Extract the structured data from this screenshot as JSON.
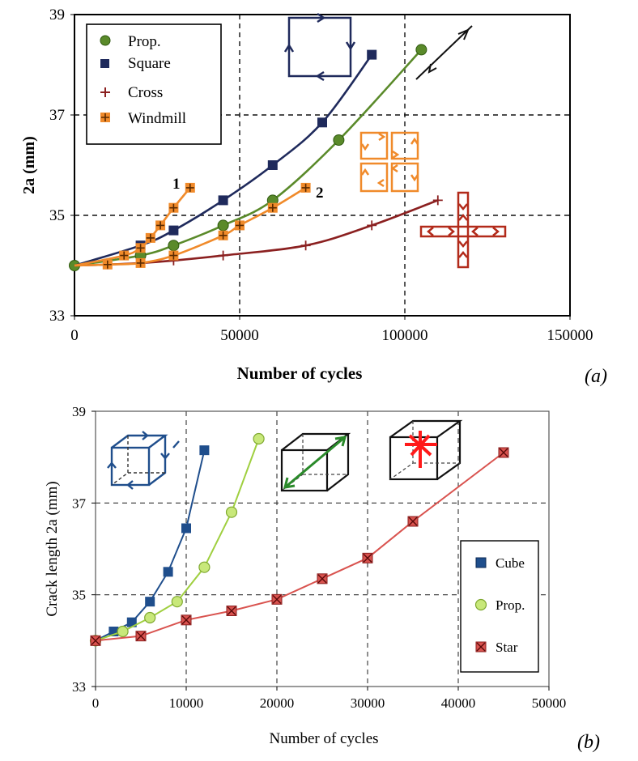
{
  "panel_labels": [
    "(a)",
    "(b)"
  ],
  "icon_labels": [
    "1",
    "2"
  ],
  "colors": {
    "navy": "#1f2a5c",
    "green": "#5a8a2a",
    "cross": "#8b2020",
    "orange": "#f08a2a",
    "blue_b": "#1f4e8c",
    "lightgreen_b": "#9fcf3f",
    "red_b": "#d9534f"
  },
  "chart_data": [
    {
      "type": "line",
      "panel": "(a)",
      "xlabel": "Number of cycles",
      "ylabel": "2a (mm)",
      "xlim": [
        0,
        150000
      ],
      "ylim": [
        33,
        39
      ],
      "xticks": [
        0,
        50000,
        100000,
        150000
      ],
      "yticks": [
        33,
        35,
        37,
        39
      ],
      "grid": "dashed",
      "legend_position": "top-left",
      "series": [
        {
          "name": "Prop.",
          "color": "#5a8a2a",
          "marker": "circle",
          "points": [
            [
              0,
              34.0
            ],
            [
              20000,
              34.2
            ],
            [
              30000,
              34.4
            ],
            [
              45000,
              34.8
            ],
            [
              60000,
              35.3
            ],
            [
              80000,
              36.5
            ],
            [
              105000,
              38.3
            ]
          ]
        },
        {
          "name": "Square",
          "color": "#1f2a5c",
          "marker": "square",
          "points": [
            [
              0,
              34.0
            ],
            [
              20000,
              34.4
            ],
            [
              30000,
              34.7
            ],
            [
              45000,
              35.3
            ],
            [
              60000,
              36.0
            ],
            [
              75000,
              36.85
            ],
            [
              90000,
              38.2
            ]
          ]
        },
        {
          "name": "Cross",
          "color": "#8b2020",
          "marker": "plus",
          "points": [
            [
              0,
              34.0
            ],
            [
              10000,
              34.02
            ],
            [
              20000,
              34.05
            ],
            [
              30000,
              34.1
            ],
            [
              45000,
              34.2
            ],
            [
              70000,
              34.4
            ],
            [
              90000,
              34.8
            ],
            [
              110000,
              35.3
            ]
          ]
        },
        {
          "name": "Windmill",
          "color": "#f08a2a",
          "marker": "plus-box",
          "points": []
        },
        {
          "color": "#f08a2a",
          "marker": "plus-box",
          "points": [
            [
              0,
              34.0
            ],
            [
              15000,
              34.2
            ],
            [
              20000,
              34.35
            ],
            [
              23000,
              34.55
            ],
            [
              26000,
              34.8
            ],
            [
              30000,
              35.15
            ],
            [
              35000,
              35.55
            ]
          ]
        },
        {
          "color": "#f08a2a",
          "marker": "plus-box",
          "points": [
            [
              0,
              34.0
            ],
            [
              10000,
              34.02
            ],
            [
              20000,
              34.05
            ],
            [
              30000,
              34.2
            ],
            [
              45000,
              34.6
            ],
            [
              50000,
              34.8
            ],
            [
              60000,
              35.15
            ],
            [
              70000,
              35.55
            ]
          ]
        }
      ]
    },
    {
      "type": "line",
      "panel": "(b)",
      "xlabel": "Number of cycles",
      "ylabel": "Crack length 2a (mm)",
      "xlim": [
        0,
        50000
      ],
      "ylim": [
        33,
        39
      ],
      "xticks": [
        0,
        10000,
        20000,
        30000,
        40000,
        50000
      ],
      "yticks": [
        33,
        35,
        37,
        39
      ],
      "grid": "dashed",
      "legend_position": "bottom-right",
      "series": [
        {
          "name": "Cube",
          "color": "#1f4e8c",
          "marker": "square",
          "points": [
            [
              0,
              34.0
            ],
            [
              2000,
              34.2
            ],
            [
              4000,
              34.4
            ],
            [
              6000,
              34.85
            ],
            [
              8000,
              35.5
            ],
            [
              10000,
              36.45
            ],
            [
              12000,
              38.15
            ]
          ]
        },
        {
          "name": "Prop.",
          "color": "#9fcf3f",
          "marker": "circle",
          "points": [
            [
              0,
              34.0
            ],
            [
              3000,
              34.2
            ],
            [
              6000,
              34.5
            ],
            [
              9000,
              34.85
            ],
            [
              12000,
              35.6
            ],
            [
              15000,
              36.8
            ],
            [
              18000,
              38.4
            ]
          ]
        },
        {
          "name": "Star",
          "color": "#d9534f",
          "marker": "x-square",
          "points": [
            [
              0,
              34.0
            ],
            [
              5000,
              34.1
            ],
            [
              10000,
              34.45
            ],
            [
              15000,
              34.65
            ],
            [
              20000,
              34.9
            ],
            [
              25000,
              35.35
            ],
            [
              30000,
              35.8
            ],
            [
              35000,
              36.6
            ],
            [
              45000,
              38.1
            ]
          ]
        }
      ]
    }
  ]
}
